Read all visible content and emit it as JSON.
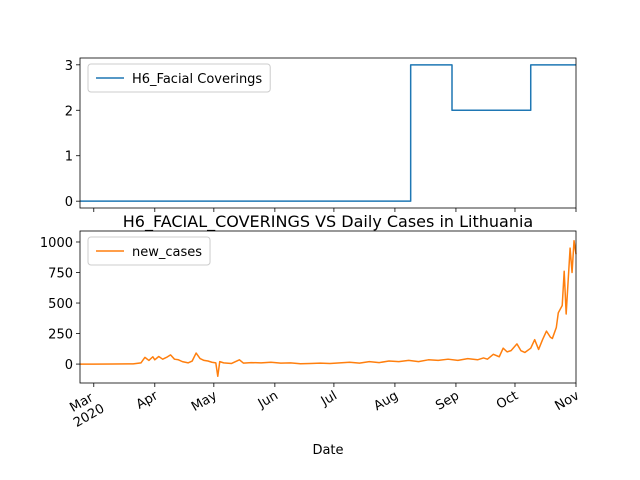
{
  "chart_data": [
    {
      "type": "line",
      "x": [
        -7,
        161,
        161,
        182,
        182,
        222,
        222,
        245
      ],
      "series": [
        {
          "name": "H6_Facial Coverings",
          "color": "#1f77b4",
          "values": [
            0,
            0,
            3,
            3,
            2,
            2,
            3,
            3
          ]
        }
      ],
      "xlim": [
        -7,
        245
      ],
      "xticks": [
        0,
        31,
        61,
        92,
        122,
        153,
        184,
        214,
        245
      ],
      "ylim": [
        -0.15,
        3.15
      ],
      "yticks": [
        0,
        1,
        2,
        3
      ],
      "legend": "upper left"
    },
    {
      "type": "line",
      "title": "H6_FACIAL_COVERINGS VS Daily Cases in Lithuania",
      "xlabel": "Date",
      "x": [
        -7,
        0,
        10,
        20,
        24,
        26,
        28,
        30,
        31,
        33,
        35,
        37,
        39,
        41,
        43,
        45,
        48,
        50,
        52,
        54,
        56,
        58,
        60,
        62,
        63,
        64,
        66,
        70,
        74,
        76,
        80,
        85,
        90,
        95,
        100,
        105,
        110,
        115,
        120,
        125,
        130,
        135,
        140,
        145,
        150,
        155,
        160,
        165,
        170,
        175,
        180,
        185,
        190,
        195,
        198,
        200,
        203,
        206,
        208,
        210,
        212,
        215,
        217,
        219,
        222,
        224,
        226,
        228,
        230,
        232,
        233,
        235,
        236,
        238,
        239,
        240,
        242,
        243,
        244,
        245
      ],
      "series": [
        {
          "name": "new_cases",
          "color": "#ff7f0e",
          "values": [
            0,
            0,
            1,
            2,
            10,
            55,
            30,
            60,
            35,
            62,
            40,
            55,
            75,
            40,
            35,
            20,
            10,
            25,
            90,
            45,
            30,
            25,
            15,
            10,
            -100,
            20,
            10,
            5,
            35,
            8,
            12,
            10,
            15,
            8,
            10,
            3,
            5,
            8,
            5,
            10,
            15,
            8,
            20,
            12,
            25,
            20,
            30,
            20,
            35,
            30,
            40,
            30,
            45,
            35,
            50,
            40,
            80,
            60,
            130,
            100,
            110,
            165,
            110,
            95,
            130,
            200,
            120,
            200,
            270,
            220,
            210,
            300,
            420,
            480,
            760,
            410,
            950,
            750,
            1010,
            900
          ]
        }
      ],
      "xlim": [
        -7,
        245
      ],
      "xticks": [
        {
          "value": 0,
          "label": "Mar\n2020"
        },
        {
          "value": 31,
          "label": "Apr"
        },
        {
          "value": 61,
          "label": "May"
        },
        {
          "value": 92,
          "label": "Jun"
        },
        {
          "value": 122,
          "label": "Jul"
        },
        {
          "value": 153,
          "label": "Aug"
        },
        {
          "value": 184,
          "label": "Sep"
        },
        {
          "value": 214,
          "label": "Oct"
        },
        {
          "value": 245,
          "label": "Nov"
        }
      ],
      "ylim": [
        -155,
        1090
      ],
      "yticks": [
        0,
        250,
        500,
        750,
        1000
      ],
      "legend": "upper left"
    }
  ]
}
